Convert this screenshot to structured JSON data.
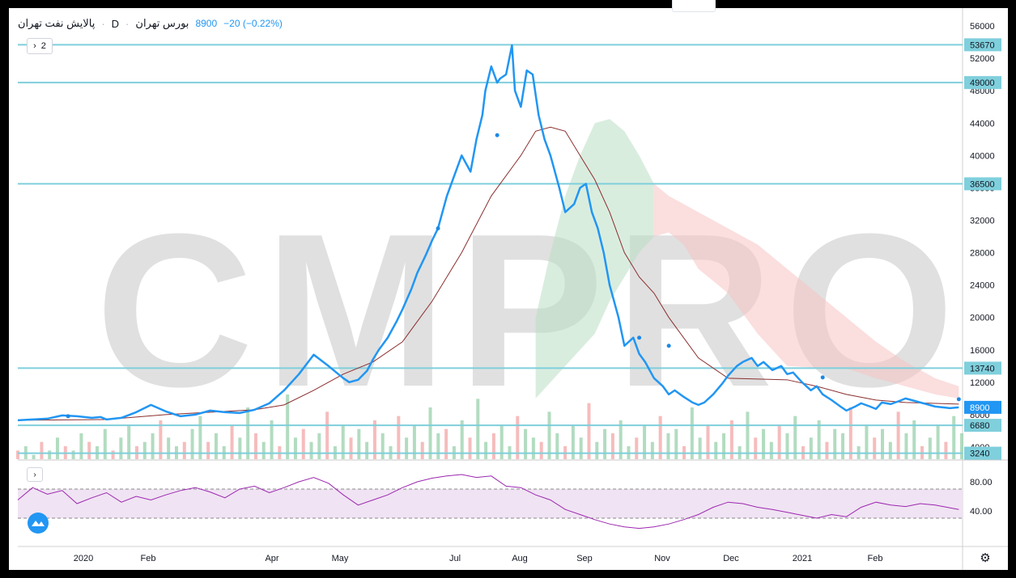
{
  "legend": {
    "symbol": "پالایش نفت تهران",
    "timeframe": "D",
    "exchange": "بورس تهران",
    "price": "8900",
    "change": "−20 (−0.22%)"
  },
  "indicator_count": "2",
  "watermark": "CMPRO",
  "colors": {
    "price_line": "#2196f3",
    "level_line": "#7fcfdc",
    "kijun": "#8b2e2e",
    "cloud_bull": "#b9dfc4",
    "cloud_bear": "#f7c3c3",
    "rsi": "#9c27b0",
    "rsi_band": "#f0e3f3",
    "vol_up": "#a5d6b5",
    "vol_down": "#f4b0b0"
  },
  "chart_data": [
    {
      "type": "line",
      "title": "",
      "x_ticks": [
        "2020",
        "Feb",
        "Apr",
        "May",
        "Jul",
        "Aug",
        "Sep",
        "Nov",
        "Dec",
        "2021",
        "Feb"
      ],
      "y_ticks": [
        56000,
        52000,
        48000,
        44000,
        40000,
        36000,
        32000,
        28000,
        24000,
        20000,
        16000,
        12000,
        8000,
        4000
      ],
      "ylim": [
        2500,
        58000
      ],
      "last_price": 8900,
      "horizontal_levels": [
        53670,
        49000,
        36500,
        13740,
        6680,
        3240
      ],
      "series": [
        {
          "kind": "price",
          "x_index": [
            0,
            5,
            10,
            15,
            20,
            25,
            28,
            30,
            35,
            40,
            45,
            50,
            55,
            60,
            65,
            70,
            75,
            80,
            85,
            90,
            95,
            100,
            105,
            110,
            112,
            115,
            118,
            120,
            122,
            125,
            128,
            130,
            133,
            135,
            138,
            140,
            142,
            145,
            148,
            150,
            153,
            155,
            157,
            158,
            160,
            162,
            163,
            165,
            167,
            168,
            170,
            172,
            174,
            176,
            178,
            180,
            183,
            185,
            188,
            190,
            192,
            194,
            196,
            198,
            200,
            203,
            205,
            208,
            210,
            212,
            215,
            218,
            220,
            222,
            225,
            228,
            230,
            232,
            235,
            238,
            240,
            243,
            245,
            248,
            250,
            252,
            255,
            258,
            260,
            262,
            265,
            268,
            270,
            272,
            275,
            278,
            280,
            283,
            285,
            288,
            290,
            292,
            295,
            298,
            300,
            305,
            310,
            315,
            318
          ],
          "values": [
            7300,
            7400,
            7500,
            7900,
            7800,
            7600,
            7700,
            7400,
            7600,
            8300,
            9200,
            8400,
            7800,
            8000,
            8500,
            8300,
            8200,
            8600,
            9400,
            11000,
            13000,
            15400,
            14000,
            12500,
            12000,
            12300,
            13400,
            14800,
            16000,
            17500,
            19500,
            21000,
            23500,
            25500,
            27800,
            29500,
            31000,
            35000,
            38000,
            40000,
            38000,
            42000,
            45000,
            48000,
            51000,
            49000,
            49500,
            50000,
            53600,
            48000,
            46000,
            50500,
            50000,
            45000,
            42000,
            40000,
            36000,
            33000,
            34000,
            36000,
            36500,
            33000,
            31000,
            28000,
            24000,
            20000,
            16500,
            17500,
            15500,
            14500,
            12500,
            11500,
            10500,
            11000,
            10200,
            9500,
            9200,
            9500,
            10500,
            11800,
            12800,
            14000,
            14500,
            15000,
            14000,
            14500,
            13500,
            14000,
            13000,
            13200,
            12000,
            11000,
            11500,
            10500,
            9800,
            9000,
            8500,
            9000,
            9400,
            9000,
            8700,
            9500,
            9300,
            9700,
            10000,
            9500,
            9000,
            8800,
            8900
          ]
        },
        {
          "kind": "baseline",
          "x_index": [
            0,
            30,
            50,
            60,
            80,
            90,
            100,
            110,
            120,
            130,
            140,
            150,
            160,
            170,
            175,
            180,
            185,
            190,
            195,
            200,
            205,
            210,
            215,
            220,
            230,
            240,
            250,
            260,
            270,
            280,
            290,
            300,
            318
          ],
          "values": [
            7300,
            7400,
            8000,
            8200,
            8600,
            9200,
            11000,
            13000,
            14500,
            17000,
            22000,
            28000,
            35000,
            40000,
            43000,
            43500,
            43000,
            40000,
            37000,
            33000,
            28000,
            25000,
            23000,
            20000,
            15000,
            12500,
            12400,
            12300,
            11500,
            10500,
            9800,
            9500,
            9300
          ]
        },
        {
          "kind": "cloud",
          "x_index": [
            175,
            180,
            185,
            190,
            195,
            200,
            205,
            210,
            215,
            220,
            225,
            230,
            240,
            250,
            260,
            270,
            280,
            290,
            300,
            310,
            318
          ],
          "upper": [
            20000,
            28000,
            35000,
            40000,
            44000,
            44500,
            43000,
            40000,
            36500,
            35000,
            34000,
            33000,
            31000,
            29000,
            26000,
            23000,
            20000,
            17000,
            14500,
            12500,
            11500
          ],
          "lower": [
            10000,
            12000,
            14000,
            16000,
            18000,
            22000,
            25000,
            28000,
            30000,
            30500,
            29000,
            26000,
            23000,
            18000,
            14000,
            13800,
            13700,
            12500,
            11500,
            10500,
            10000
          ],
          "note_bull_until_x": 212
        },
        {
          "kind": "volume",
          "values": [
            2,
            3,
            1,
            4,
            2,
            5,
            3,
            2,
            6,
            4,
            3,
            7,
            2,
            5,
            8,
            3,
            4,
            6,
            9,
            5,
            3,
            4,
            7,
            10,
            4,
            6,
            3,
            8,
            5,
            12,
            6,
            4,
            9,
            3,
            15,
            5,
            7,
            4,
            6,
            11,
            3,
            8,
            5,
            7,
            4,
            9,
            6,
            3,
            10,
            5,
            8,
            4,
            12,
            6,
            7,
            3,
            9,
            5,
            14,
            4,
            6,
            8,
            3,
            10,
            7,
            5,
            4,
            11,
            6,
            3,
            8,
            5,
            13,
            4,
            7,
            6,
            9,
            3,
            5,
            8,
            4,
            10,
            6,
            7,
            3,
            12,
            5,
            8,
            4,
            6,
            9,
            3,
            11,
            5,
            7,
            4,
            8,
            6,
            10,
            3,
            5,
            9,
            4,
            7,
            6,
            12,
            3,
            8,
            5,
            7,
            4,
            11,
            6,
            9,
            3,
            5,
            8,
            4,
            10,
            6
          ]
        }
      ]
    },
    {
      "type": "line",
      "title": "",
      "y_ticks": [
        80.0,
        40.0
      ],
      "ylim": [
        0,
        100
      ],
      "band": [
        70,
        30
      ],
      "series": [
        {
          "kind": "rsi",
          "x_index": [
            0,
            5,
            10,
            15,
            20,
            25,
            30,
            35,
            40,
            45,
            50,
            55,
            60,
            65,
            70,
            75,
            80,
            85,
            90,
            95,
            100,
            105,
            110,
            115,
            120,
            125,
            130,
            135,
            140,
            145,
            150,
            155,
            160,
            165,
            170,
            175,
            180,
            185,
            190,
            195,
            200,
            205,
            210,
            215,
            220,
            225,
            230,
            235,
            240,
            245,
            250,
            255,
            260,
            265,
            270,
            275,
            280,
            285,
            290,
            295,
            300,
            305,
            310,
            318
          ],
          "values": [
            55,
            72,
            63,
            68,
            50,
            58,
            65,
            52,
            60,
            55,
            62,
            68,
            72,
            66,
            58,
            70,
            74,
            65,
            72,
            80,
            86,
            78,
            62,
            48,
            55,
            62,
            72,
            80,
            85,
            88,
            90,
            86,
            88,
            74,
            72,
            62,
            55,
            42,
            35,
            28,
            22,
            18,
            16,
            18,
            22,
            28,
            35,
            45,
            52,
            50,
            45,
            42,
            38,
            34,
            30,
            35,
            32,
            45,
            52,
            48,
            46,
            50,
            48,
            42
          ]
        }
      ]
    }
  ]
}
